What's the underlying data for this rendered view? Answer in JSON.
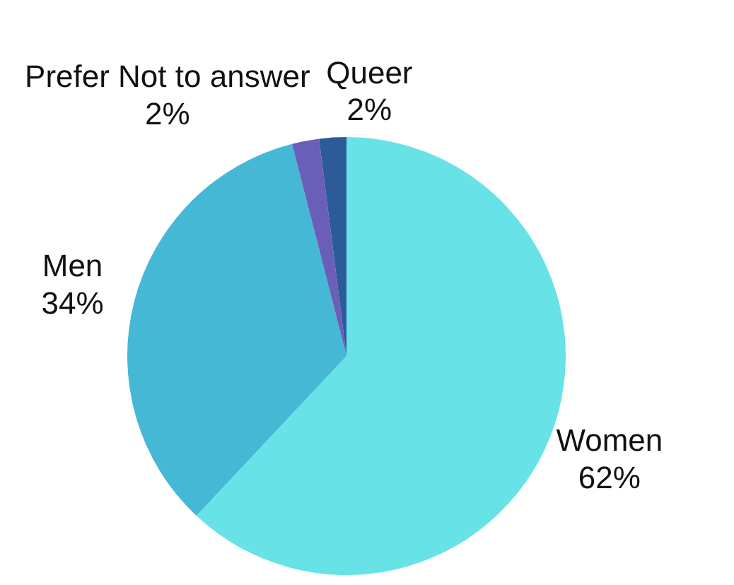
{
  "chart_data": {
    "type": "pie",
    "categories": [
      "Women",
      "Men",
      "Prefer Not to answer",
      "Queer"
    ],
    "values": [
      62,
      34,
      2,
      2
    ],
    "colors": [
      "#67e3e8",
      "#45b8d6",
      "#6a5fb8",
      "#2d5a99"
    ],
    "value_labels": [
      "62%",
      "34%",
      "2%",
      "2%"
    ]
  }
}
